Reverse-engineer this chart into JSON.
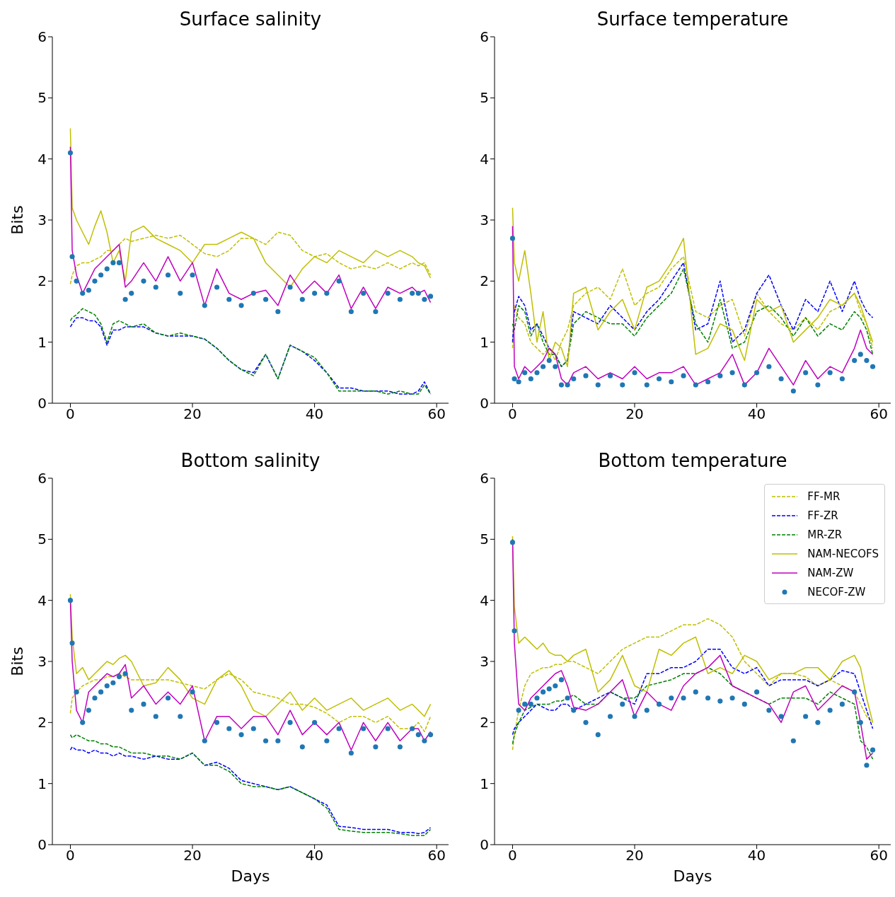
{
  "chart_data": [
    {
      "type": "line",
      "title": "Surface salinity",
      "ylabel": "Bits",
      "xlim": [
        -2.95,
        61.95
      ],
      "xticks": [
        0,
        20,
        40,
        60
      ],
      "ylim": [
        0,
        6
      ],
      "yticks": [
        0,
        1,
        2,
        3,
        4,
        5,
        6
      ],
      "legend": false,
      "x": [
        0,
        0.3,
        1,
        2,
        3,
        4,
        5,
        6,
        7,
        8,
        9,
        10,
        12,
        14,
        16,
        18,
        20,
        22,
        24,
        26,
        28,
        30,
        32,
        34,
        36,
        38,
        40,
        42,
        44,
        46,
        48,
        50,
        52,
        54,
        56,
        57,
        58,
        59
      ],
      "series": [
        {
          "line_style": "dashed",
          "color": "#bfbf00",
          "values": [
            1.95,
            2.1,
            2.25,
            2.3,
            2.3,
            2.35,
            2.4,
            2.5,
            2.5,
            2.6,
            2.7,
            2.65,
            2.7,
            2.75,
            2.7,
            2.75,
            2.6,
            2.45,
            2.4,
            2.5,
            2.7,
            2.7,
            2.6,
            2.8,
            2.75,
            2.5,
            2.4,
            2.45,
            2.3,
            2.2,
            2.25,
            2.2,
            2.3,
            2.2,
            2.3,
            2.25,
            2.3,
            2.1
          ]
        },
        {
          "line_style": "dashed",
          "color": "#0000ff",
          "values": [
            1.25,
            1.3,
            1.4,
            1.4,
            1.35,
            1.35,
            1.25,
            0.95,
            1.2,
            1.2,
            1.25,
            1.25,
            1.25,
            1.15,
            1.1,
            1.1,
            1.1,
            1.05,
            0.9,
            0.7,
            0.55,
            0.5,
            0.8,
            0.4,
            0.95,
            0.85,
            0.7,
            0.5,
            0.25,
            0.25,
            0.2,
            0.2,
            0.2,
            0.15,
            0.15,
            0.2,
            0.35,
            0.15
          ]
        },
        {
          "line_style": "dashed",
          "color": "#008000",
          "values": [
            1.35,
            1.4,
            1.45,
            1.55,
            1.5,
            1.45,
            1.3,
            1.0,
            1.3,
            1.35,
            1.3,
            1.25,
            1.3,
            1.15,
            1.1,
            1.15,
            1.1,
            1.05,
            0.9,
            0.7,
            0.55,
            0.45,
            0.8,
            0.4,
            0.95,
            0.85,
            0.75,
            0.5,
            0.2,
            0.2,
            0.2,
            0.2,
            0.15,
            0.2,
            0.15,
            0.15,
            0.3,
            0.15
          ]
        },
        {
          "line_style": "solid",
          "color": "#bfbf00",
          "values": [
            4.5,
            3.2,
            3.0,
            2.8,
            2.6,
            2.9,
            3.15,
            2.8,
            2.3,
            2.5,
            2.0,
            2.8,
            2.9,
            2.7,
            2.6,
            2.5,
            2.3,
            2.6,
            2.6,
            2.7,
            2.8,
            2.7,
            2.3,
            2.1,
            1.9,
            2.2,
            2.4,
            2.3,
            2.5,
            2.4,
            2.3,
            2.5,
            2.4,
            2.5,
            2.4,
            2.3,
            2.25,
            2.05
          ]
        },
        {
          "line_style": "solid",
          "color": "#bf00bf",
          "values": [
            4.2,
            2.5,
            2.1,
            1.8,
            2.0,
            2.2,
            2.3,
            2.4,
            2.5,
            2.6,
            1.9,
            2.0,
            2.3,
            2.0,
            2.4,
            2.0,
            2.3,
            1.6,
            2.2,
            1.8,
            1.7,
            1.8,
            1.85,
            1.6,
            2.1,
            1.8,
            2.0,
            1.8,
            2.1,
            1.55,
            1.9,
            1.55,
            1.9,
            1.8,
            1.9,
            1.8,
            1.85,
            1.65
          ]
        },
        {
          "type": "scatter",
          "marker": "circle",
          "color": "#1f77b4",
          "values": [
            4.1,
            2.4,
            2.0,
            1.8,
            1.85,
            2.0,
            2.1,
            2.2,
            2.3,
            2.3,
            1.7,
            1.8,
            2.0,
            1.9,
            2.1,
            1.8,
            2.1,
            1.6,
            1.9,
            1.7,
            1.6,
            1.8,
            1.7,
            1.5,
            1.9,
            1.7,
            1.8,
            1.8,
            2.0,
            1.5,
            1.8,
            1.5,
            1.8,
            1.7,
            1.8,
            1.8,
            1.7,
            1.75
          ]
        }
      ]
    },
    {
      "type": "line",
      "title": "Surface temperature",
      "xlim": [
        -2.95,
        61.95
      ],
      "xticks": [
        0,
        20,
        40,
        60
      ],
      "ylim": [
        0,
        6
      ],
      "yticks": [
        0,
        1,
        2,
        3,
        4,
        5,
        6
      ],
      "legend": false,
      "x": [
        0,
        0.3,
        1,
        2,
        3,
        4,
        5,
        6,
        7,
        8,
        9,
        10,
        12,
        14,
        16,
        18,
        20,
        22,
        24,
        26,
        28,
        30,
        32,
        34,
        36,
        38,
        40,
        42,
        44,
        46,
        48,
        50,
        52,
        54,
        56,
        57,
        58,
        59
      ],
      "series": [
        {
          "line_style": "dashed",
          "color": "#bfbf00",
          "values": [
            0.9,
            1.6,
            1.4,
            1.3,
            1.0,
            0.9,
            0.8,
            0.9,
            0.7,
            1.0,
            1.2,
            1.6,
            1.8,
            1.9,
            1.7,
            2.2,
            1.6,
            1.8,
            1.9,
            2.2,
            2.4,
            1.5,
            1.4,
            1.6,
            1.7,
            1.1,
            1.8,
            1.5,
            1.3,
            1.2,
            1.4,
            1.2,
            1.5,
            1.6,
            1.8,
            1.5,
            1.3,
            0.9
          ]
        },
        {
          "line_style": "dashed",
          "color": "#0000ff",
          "values": [
            1.0,
            1.5,
            1.75,
            1.6,
            1.2,
            1.3,
            1.1,
            0.9,
            0.8,
            0.6,
            0.7,
            1.5,
            1.4,
            1.3,
            1.6,
            1.4,
            1.2,
            1.5,
            1.7,
            2.0,
            2.3,
            1.2,
            1.3,
            2.0,
            1.0,
            1.2,
            1.8,
            2.1,
            1.6,
            1.2,
            1.7,
            1.5,
            2.0,
            1.5,
            2.0,
            1.7,
            1.5,
            1.4
          ]
        },
        {
          "line_style": "dashed",
          "color": "#008000",
          "values": [
            1.3,
            1.2,
            1.6,
            1.5,
            1.1,
            1.3,
            1.0,
            0.8,
            0.8,
            0.6,
            0.7,
            1.3,
            1.5,
            1.4,
            1.3,
            1.3,
            1.1,
            1.4,
            1.6,
            1.8,
            2.2,
            1.3,
            1.0,
            1.7,
            0.9,
            1.0,
            1.5,
            1.6,
            1.4,
            1.1,
            1.4,
            1.1,
            1.3,
            1.2,
            1.5,
            1.4,
            1.2,
            0.8
          ]
        },
        {
          "line_style": "solid",
          "color": "#bfbf00",
          "values": [
            3.2,
            2.3,
            2.0,
            2.5,
            1.8,
            1.0,
            1.5,
            0.7,
            1.0,
            0.9,
            0.6,
            1.8,
            1.9,
            1.2,
            1.5,
            1.7,
            1.2,
            1.9,
            2.0,
            2.3,
            2.7,
            0.8,
            0.9,
            1.3,
            1.2,
            0.7,
            1.7,
            1.5,
            1.6,
            1.0,
            1.2,
            1.4,
            1.7,
            1.6,
            1.8,
            1.6,
            1.3,
            1.0
          ]
        },
        {
          "line_style": "solid",
          "color": "#bf00bf",
          "values": [
            2.9,
            0.6,
            0.4,
            0.6,
            0.5,
            0.6,
            0.7,
            0.9,
            0.8,
            0.4,
            0.3,
            0.5,
            0.6,
            0.4,
            0.5,
            0.4,
            0.6,
            0.4,
            0.5,
            0.5,
            0.6,
            0.3,
            0.4,
            0.5,
            0.8,
            0.3,
            0.5,
            0.9,
            0.6,
            0.3,
            0.7,
            0.4,
            0.6,
            0.5,
            0.9,
            1.2,
            0.9,
            0.8
          ]
        },
        {
          "type": "scatter",
          "marker": "circle",
          "color": "#1f77b4",
          "values": [
            2.7,
            0.4,
            0.35,
            0.5,
            0.4,
            0.5,
            0.6,
            0.7,
            0.6,
            0.3,
            0.3,
            0.4,
            0.45,
            0.3,
            0.45,
            0.3,
            0.5,
            0.3,
            0.4,
            0.35,
            0.45,
            0.3,
            0.35,
            0.45,
            0.5,
            0.3,
            0.5,
            0.6,
            0.4,
            0.2,
            0.5,
            0.3,
            0.5,
            0.4,
            0.7,
            0.8,
            0.7,
            0.6
          ]
        }
      ]
    },
    {
      "type": "line",
      "title": "Bottom salinity",
      "xlabel": "Days",
      "ylabel": "Bits",
      "xlim": [
        -2.95,
        61.95
      ],
      "xticks": [
        0,
        20,
        40,
        60
      ],
      "ylim": [
        0,
        6
      ],
      "yticks": [
        0,
        1,
        2,
        3,
        4,
        5,
        6
      ],
      "legend": false,
      "x": [
        0,
        0.3,
        1,
        2,
        3,
        4,
        5,
        6,
        7,
        8,
        9,
        10,
        12,
        14,
        16,
        18,
        20,
        22,
        24,
        26,
        28,
        30,
        32,
        34,
        36,
        38,
        40,
        42,
        44,
        46,
        48,
        50,
        52,
        54,
        56,
        57,
        58,
        59
      ],
      "series": [
        {
          "line_style": "dashed",
          "color": "#bfbf00",
          "values": [
            2.15,
            2.4,
            2.5,
            2.6,
            2.65,
            2.7,
            2.7,
            2.75,
            2.75,
            2.8,
            2.75,
            2.7,
            2.7,
            2.7,
            2.7,
            2.65,
            2.6,
            2.55,
            2.7,
            2.8,
            2.7,
            2.5,
            2.45,
            2.4,
            2.3,
            2.3,
            2.25,
            2.15,
            2.0,
            2.1,
            2.1,
            2.0,
            2.1,
            1.9,
            1.9,
            2.0,
            1.85,
            2.1
          ]
        },
        {
          "line_style": "dashed",
          "color": "#0000ff",
          "values": [
            1.55,
            1.6,
            1.55,
            1.55,
            1.5,
            1.55,
            1.5,
            1.5,
            1.45,
            1.5,
            1.45,
            1.45,
            1.4,
            1.45,
            1.4,
            1.4,
            1.5,
            1.3,
            1.35,
            1.25,
            1.05,
            1.0,
            0.95,
            0.9,
            0.95,
            0.85,
            0.75,
            0.65,
            0.3,
            0.28,
            0.25,
            0.25,
            0.25,
            0.2,
            0.2,
            0.18,
            0.2,
            0.28
          ]
        },
        {
          "line_style": "dashed",
          "color": "#008000",
          "values": [
            1.8,
            1.75,
            1.8,
            1.75,
            1.7,
            1.7,
            1.65,
            1.65,
            1.6,
            1.6,
            1.55,
            1.5,
            1.5,
            1.45,
            1.45,
            1.4,
            1.5,
            1.3,
            1.3,
            1.2,
            1.0,
            0.95,
            0.95,
            0.9,
            0.95,
            0.85,
            0.75,
            0.6,
            0.25,
            0.22,
            0.2,
            0.2,
            0.2,
            0.18,
            0.15,
            0.15,
            0.15,
            0.25
          ]
        },
        {
          "line_style": "solid",
          "color": "#bfbf00",
          "values": [
            4.1,
            3.4,
            2.8,
            2.9,
            2.7,
            2.8,
            2.9,
            3.0,
            2.95,
            3.05,
            3.1,
            3.0,
            2.6,
            2.65,
            2.9,
            2.7,
            2.4,
            2.3,
            2.7,
            2.85,
            2.6,
            2.2,
            2.1,
            2.3,
            2.5,
            2.2,
            2.4,
            2.2,
            2.3,
            2.4,
            2.2,
            2.3,
            2.4,
            2.2,
            2.3,
            2.2,
            2.1,
            2.3
          ]
        },
        {
          "line_style": "solid",
          "color": "#bf00bf",
          "values": [
            4.0,
            3.0,
            2.2,
            2.0,
            2.5,
            2.6,
            2.7,
            2.8,
            2.75,
            2.8,
            2.95,
            2.4,
            2.6,
            2.3,
            2.5,
            2.3,
            2.6,
            1.7,
            2.1,
            2.1,
            1.9,
            2.1,
            2.1,
            1.8,
            2.2,
            1.8,
            2.0,
            1.8,
            2.0,
            1.55,
            2.0,
            1.7,
            2.0,
            1.7,
            1.9,
            1.9,
            1.7,
            1.85
          ]
        },
        {
          "type": "scatter",
          "marker": "circle",
          "color": "#1f77b4",
          "values": [
            4.0,
            3.3,
            2.5,
            2.0,
            2.2,
            2.4,
            2.5,
            2.6,
            2.65,
            2.75,
            2.8,
            2.2,
            2.3,
            2.1,
            2.4,
            2.1,
            2.5,
            1.7,
            2.0,
            1.9,
            1.8,
            1.9,
            1.7,
            1.7,
            2.0,
            1.6,
            2.0,
            1.7,
            1.9,
            1.5,
            1.9,
            1.6,
            1.9,
            1.6,
            1.9,
            1.8,
            1.7,
            1.8
          ]
        }
      ]
    },
    {
      "type": "line",
      "title": "Bottom temperature",
      "xlabel": "Days",
      "xlim": [
        -2.95,
        61.95
      ],
      "xticks": [
        0,
        20,
        40,
        60
      ],
      "ylim": [
        0,
        6
      ],
      "yticks": [
        0,
        1,
        2,
        3,
        4,
        5,
        6
      ],
      "legend": "top right",
      "x": [
        0,
        0.3,
        1,
        2,
        3,
        4,
        5,
        6,
        7,
        8,
        9,
        10,
        12,
        14,
        16,
        18,
        20,
        22,
        24,
        26,
        28,
        30,
        32,
        34,
        36,
        38,
        40,
        42,
        44,
        46,
        48,
        50,
        52,
        54,
        56,
        57,
        58,
        59
      ],
      "series": [
        {
          "name": "FF-MR",
          "line_style": "dashed",
          "color": "#bfbf00",
          "values": [
            1.55,
            1.8,
            2.2,
            2.6,
            2.8,
            2.85,
            2.9,
            2.9,
            2.95,
            2.95,
            3.0,
            3.0,
            2.9,
            2.8,
            3.0,
            3.2,
            3.3,
            3.4,
            3.4,
            3.5,
            3.6,
            3.6,
            3.7,
            3.6,
            3.4,
            3.0,
            2.8,
            2.6,
            2.8,
            2.8,
            2.75,
            2.6,
            2.7,
            2.6,
            2.5,
            2.3,
            2.1,
            2.0
          ]
        },
        {
          "name": "FF-ZR",
          "line_style": "dashed",
          "color": "#0000ff",
          "values": [
            1.8,
            1.9,
            2.0,
            2.1,
            2.2,
            2.3,
            2.25,
            2.2,
            2.2,
            2.3,
            2.3,
            2.2,
            2.3,
            2.4,
            2.5,
            2.4,
            2.3,
            2.8,
            2.8,
            2.9,
            2.9,
            3.0,
            3.2,
            3.2,
            2.9,
            2.8,
            2.9,
            2.6,
            2.7,
            2.7,
            2.7,
            2.6,
            2.7,
            2.85,
            2.8,
            2.5,
            2.2,
            1.9
          ]
        },
        {
          "name": "MR-ZR",
          "line_style": "dashed",
          "color": "#008000",
          "values": [
            1.65,
            1.8,
            2.0,
            2.2,
            2.25,
            2.3,
            2.3,
            2.3,
            2.35,
            2.35,
            2.4,
            2.45,
            2.3,
            2.3,
            2.5,
            2.4,
            2.4,
            2.6,
            2.65,
            2.7,
            2.8,
            2.8,
            2.9,
            2.8,
            2.6,
            2.5,
            2.4,
            2.3,
            2.4,
            2.4,
            2.4,
            2.3,
            2.5,
            2.4,
            2.3,
            1.7,
            1.6,
            1.4
          ]
        },
        {
          "name": "NAM-NECOFS",
          "line_style": "solid",
          "color": "#bfbf00",
          "values": [
            5.05,
            3.9,
            3.3,
            3.4,
            3.3,
            3.2,
            3.3,
            3.15,
            3.1,
            3.1,
            3.0,
            3.1,
            3.2,
            2.5,
            2.7,
            3.1,
            2.6,
            2.5,
            3.2,
            3.1,
            3.3,
            3.4,
            2.8,
            2.9,
            2.8,
            3.1,
            3.0,
            2.7,
            2.8,
            2.8,
            2.9,
            2.9,
            2.7,
            3.0,
            3.1,
            2.9,
            2.4,
            2.0
          ]
        },
        {
          "name": "NAM-ZW",
          "line_style": "solid",
          "color": "#bf00bf",
          "values": [
            5.0,
            3.3,
            2.3,
            2.2,
            2.4,
            2.5,
            2.6,
            2.7,
            2.8,
            2.85,
            2.6,
            2.25,
            2.2,
            2.3,
            2.5,
            2.7,
            2.1,
            2.5,
            2.3,
            2.2,
            2.6,
            2.8,
            2.9,
            3.1,
            2.6,
            2.5,
            2.4,
            2.3,
            2.0,
            2.5,
            2.6,
            2.2,
            2.4,
            2.6,
            2.5,
            2.0,
            1.4,
            1.5
          ]
        },
        {
          "name": "NECOF-ZW",
          "type": "scatter",
          "marker": "circle",
          "color": "#1f77b4",
          "values": [
            4.95,
            3.5,
            2.2,
            2.3,
            2.3,
            2.4,
            2.5,
            2.55,
            2.6,
            2.7,
            2.4,
            2.2,
            2.0,
            1.8,
            2.1,
            2.3,
            2.1,
            2.2,
            2.3,
            2.4,
            2.4,
            2.5,
            2.4,
            2.35,
            2.4,
            2.3,
            2.5,
            2.2,
            2.1,
            1.7,
            2.1,
            2.0,
            2.2,
            2.3,
            2.5,
            2.0,
            1.3,
            1.55
          ]
        }
      ]
    }
  ]
}
